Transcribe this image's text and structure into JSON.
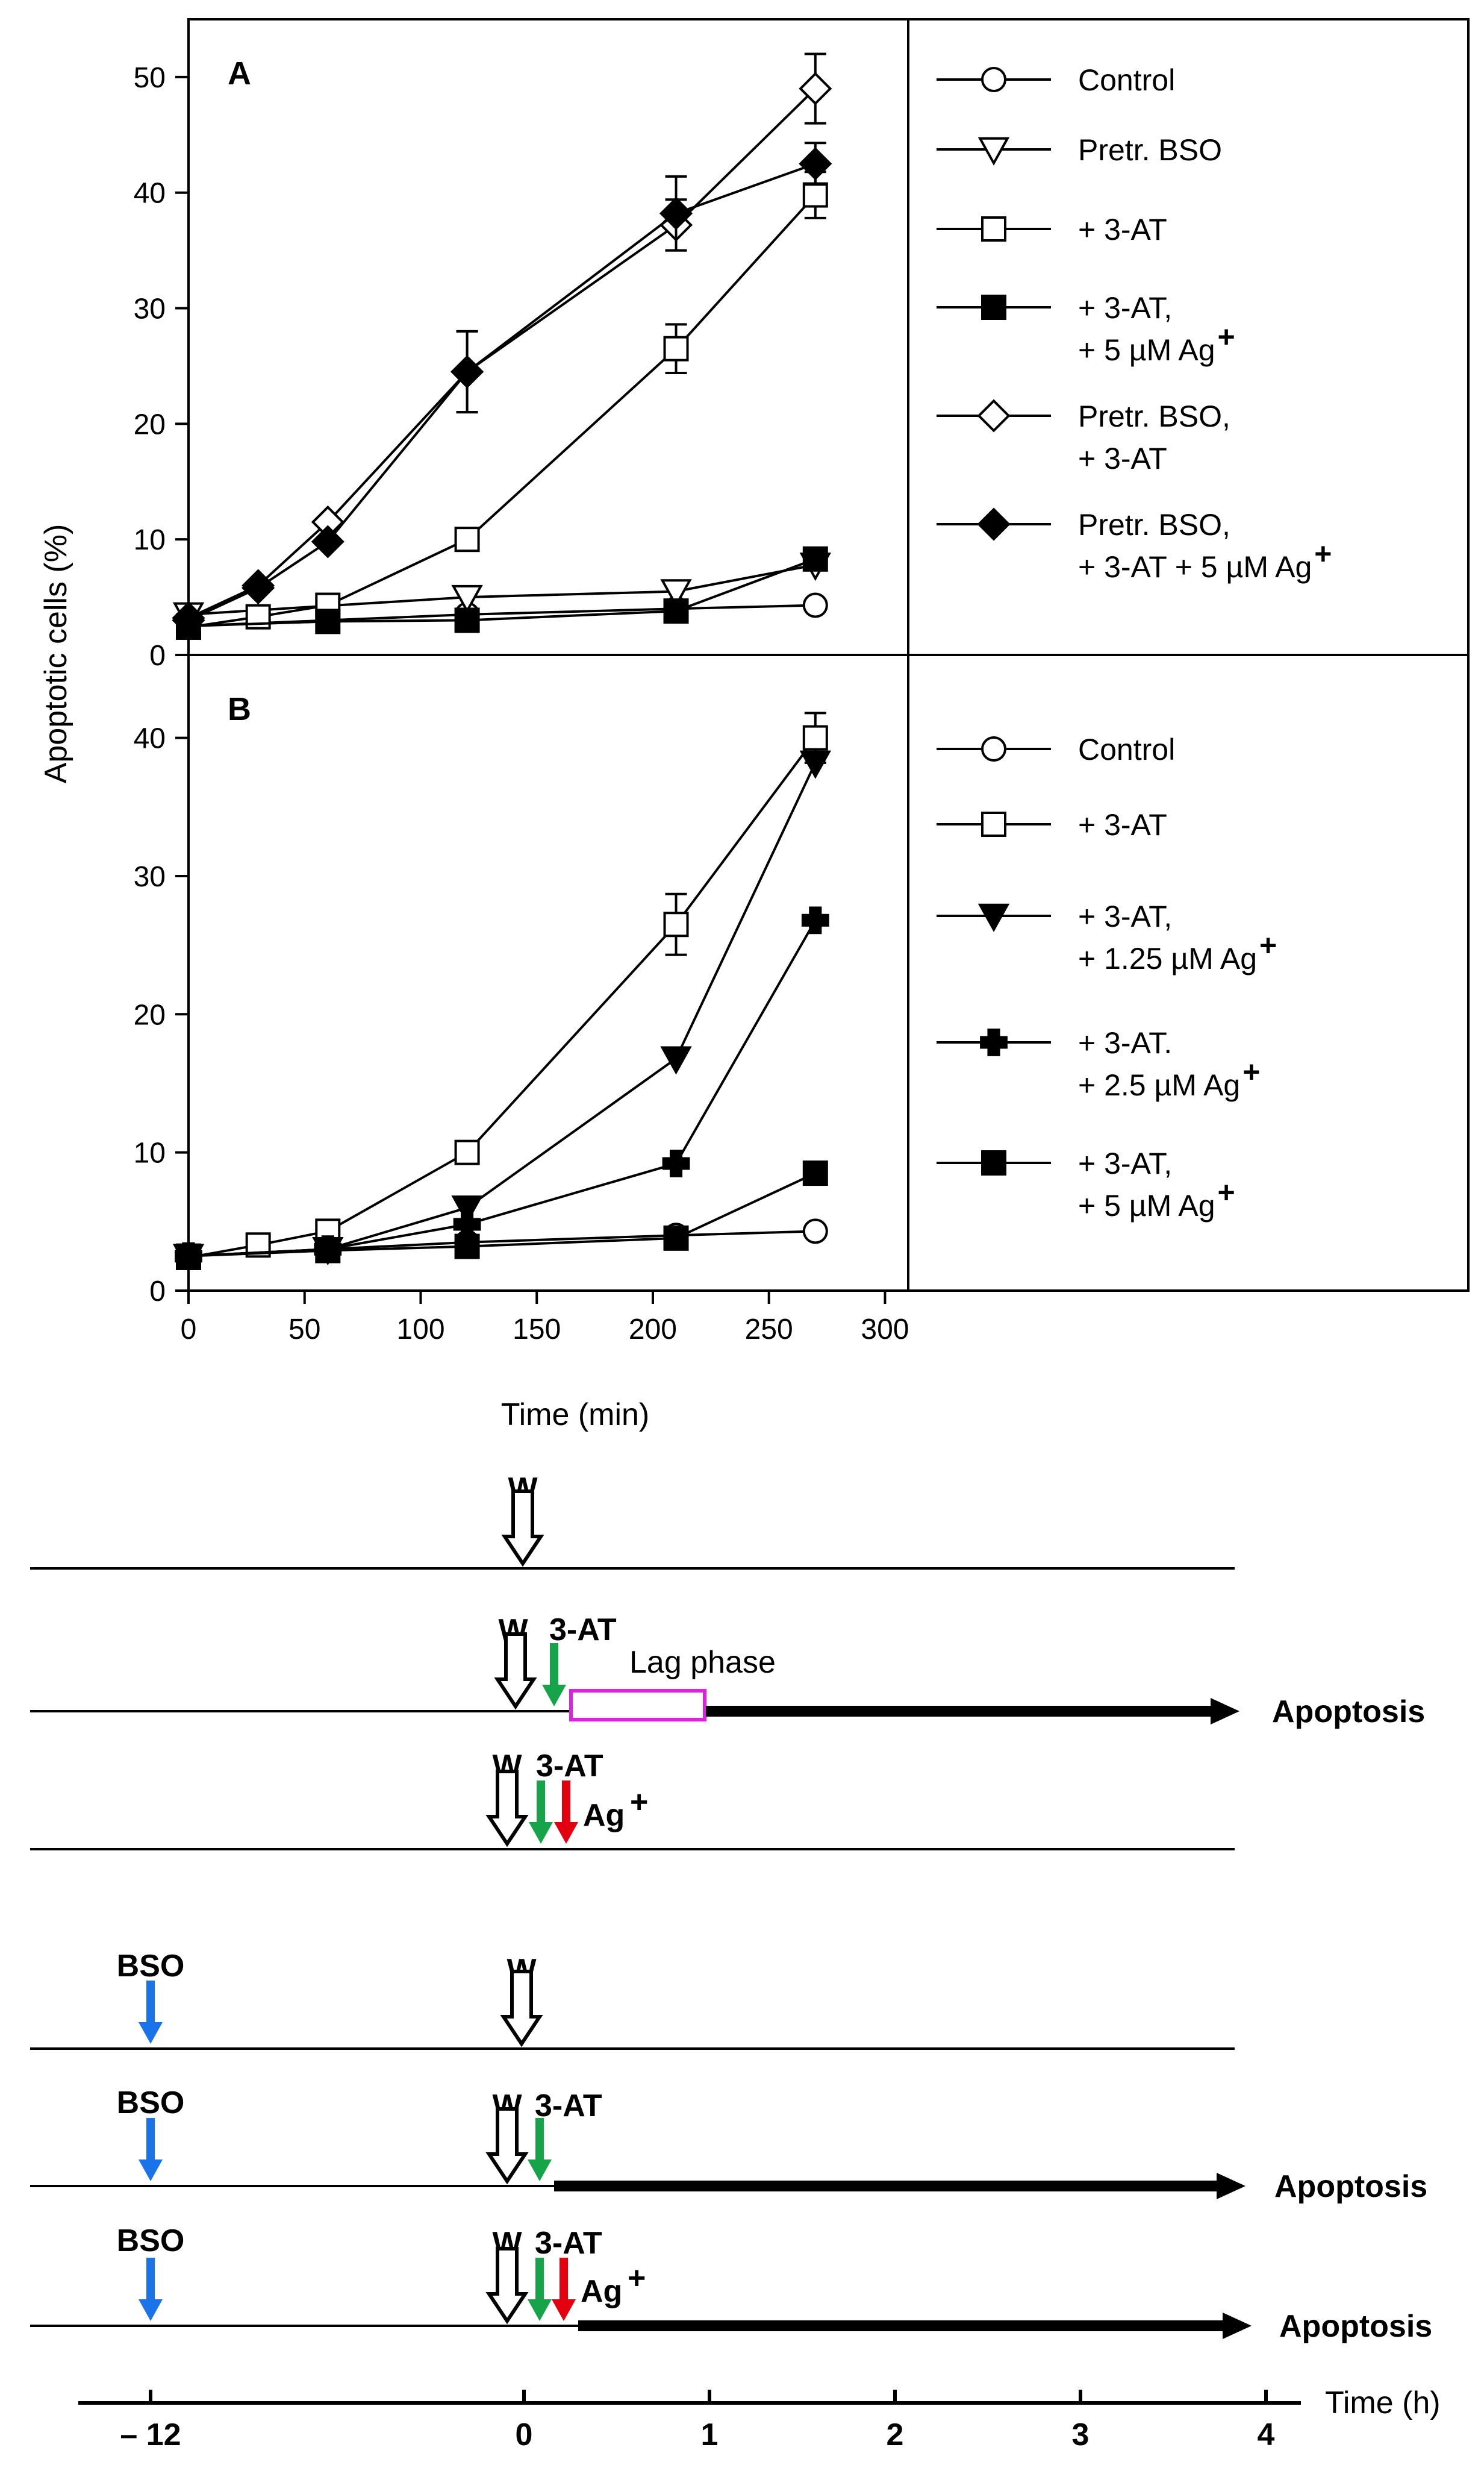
{
  "chart_data": [
    {
      "panel": "A",
      "type": "line",
      "ylabel": "Apoptotic  cells  (%)",
      "xlabel": "Time (min)",
      "ylim": [
        0,
        55
      ],
      "xlim": [
        0,
        310
      ],
      "yticks": [
        "0",
        "10",
        "20",
        "30",
        "40",
        "50"
      ],
      "series": [
        {
          "name": "Control",
          "marker": "circle-open",
          "x": [
            0,
            60,
            120,
            210,
            270
          ],
          "y": [
            2.5,
            3.0,
            3.5,
            4.0,
            4.3
          ]
        },
        {
          "name": "Pretr. BSO",
          "marker": "triangle-down-open",
          "x": [
            0,
            120,
            210,
            270
          ],
          "y": [
            3.5,
            5.0,
            5.5,
            7.8
          ]
        },
        {
          "name": "+ 3-AT",
          "marker": "square-open",
          "x": [
            0,
            30,
            60,
            120,
            210,
            270
          ],
          "y": [
            2.4,
            3.3,
            4.3,
            10.0,
            26.5,
            39.8
          ],
          "err": [
            0,
            0,
            0,
            0,
            2.1,
            2.0
          ]
        },
        {
          "name": "+ 3-AT, + 5 µM Ag+",
          "marker": "square-filled",
          "x": [
            0,
            60,
            120,
            210,
            270
          ],
          "y": [
            2.5,
            2.9,
            3.0,
            3.8,
            8.3
          ]
        },
        {
          "name": "Pretr. BSO, + 3-AT",
          "marker": "diamond-open",
          "x": [
            0,
            30,
            60,
            120,
            210,
            270
          ],
          "y": [
            3.2,
            6.0,
            11.5,
            24.5,
            37.2,
            49.0
          ],
          "err": [
            0,
            0,
            0,
            3.5,
            2.2,
            3.0
          ]
        },
        {
          "name": "Pretr. BSO, + 3-AT + 5 µM Ag+",
          "marker": "diamond-filled",
          "x": [
            0,
            30,
            60,
            120,
            210,
            270
          ],
          "y": [
            3.0,
            5.8,
            9.8,
            24.5,
            38.2,
            42.5
          ],
          "err": [
            0,
            0,
            0,
            3.5,
            3.2,
            1.8
          ]
        }
      ],
      "legend": [
        {
          "marker": "circle-open",
          "lines": [
            "Control"
          ]
        },
        {
          "marker": "triangle-down-open",
          "lines": [
            "Pretr. BSO"
          ]
        },
        {
          "marker": "square-open",
          "lines": [
            "+ 3-AT"
          ]
        },
        {
          "marker": "square-filled",
          "lines": [
            "+ 3-AT,",
            "+ 5 µM Ag"
          ],
          "sup": "+"
        },
        {
          "marker": "diamond-open",
          "lines": [
            "Pretr. BSO,",
            "+ 3-AT"
          ]
        },
        {
          "marker": "diamond-filled",
          "lines": [
            "Pretr. BSO,",
            "+ 3-AT + 5 µM Ag"
          ],
          "sup": "+"
        }
      ]
    },
    {
      "panel": "B",
      "type": "line",
      "ylabel": "Apoptotic  cells  (%)",
      "xlabel": "Time (min)",
      "ylim": [
        0,
        46
      ],
      "xlim": [
        0,
        310
      ],
      "yticks": [
        "0",
        "10",
        "20",
        "30",
        "40"
      ],
      "xticks": [
        "0",
        "50",
        "100",
        "150",
        "200",
        "250",
        "300"
      ],
      "series": [
        {
          "name": "Control",
          "marker": "circle-open",
          "x": [
            0,
            60,
            120,
            210,
            270
          ],
          "y": [
            2.5,
            3.0,
            3.5,
            4.0,
            4.3
          ]
        },
        {
          "name": "+ 3-AT",
          "marker": "square-open",
          "x": [
            0,
            30,
            60,
            120,
            210,
            270
          ],
          "y": [
            2.4,
            3.3,
            4.3,
            10.0,
            26.5,
            40.0
          ],
          "err": [
            0,
            0,
            0,
            0,
            2.2,
            1.8
          ]
        },
        {
          "name": "+ 3-AT, + 1.25 µM Ag+",
          "marker": "triangle-down-filled",
          "x": [
            0,
            60,
            120,
            210,
            270
          ],
          "y": [
            2.5,
            3.0,
            6.0,
            16.8,
            38.2
          ]
        },
        {
          "name": "+ 3-AT. + 2.5 µM Ag+",
          "marker": "plus-filled",
          "x": [
            0,
            60,
            120,
            210,
            270
          ],
          "y": [
            2.5,
            3.0,
            4.8,
            9.2,
            26.8
          ]
        },
        {
          "name": "+ 3-AT, + 5 µM Ag+",
          "marker": "square-filled",
          "x": [
            0,
            60,
            120,
            210,
            270
          ],
          "y": [
            2.5,
            2.9,
            3.2,
            3.8,
            8.5
          ]
        }
      ],
      "legend": [
        {
          "marker": "circle-open",
          "lines": [
            "Control"
          ]
        },
        {
          "marker": "square-open",
          "lines": [
            "+ 3-AT"
          ]
        },
        {
          "marker": "triangle-down-filled",
          "lines": [
            "+ 3-AT,",
            "+ 1.25 µM Ag"
          ],
          "sup": "+"
        },
        {
          "marker": "plus-filled",
          "lines": [
            "+ 3-AT.",
            "+ 2.5 µM Ag"
          ],
          "sup": "+"
        },
        {
          "marker": "square-filled",
          "lines": [
            "+ 3-AT,",
            " + 5 µM Ag"
          ],
          "sup": "+"
        }
      ]
    }
  ],
  "timeline": {
    "axis_label": "Time (h)",
    "ticks": [
      "– 12",
      "0",
      "1",
      "2",
      "3",
      "4"
    ],
    "tick_hours": [
      -12,
      0,
      1,
      2,
      3,
      4
    ],
    "labels": {
      "W": "W",
      "AT": "3-AT",
      "BSO": "BSO",
      "Ag": "Ag",
      "Ag_sup": "+",
      "lag": "Lag phase",
      "apoptosis": "Apoptosis"
    },
    "colors": {
      "bso": "#1a73e8",
      "at": "#16a34a",
      "ag": "#e3000f",
      "lag": "#e020e0",
      "line": "#000000"
    }
  }
}
